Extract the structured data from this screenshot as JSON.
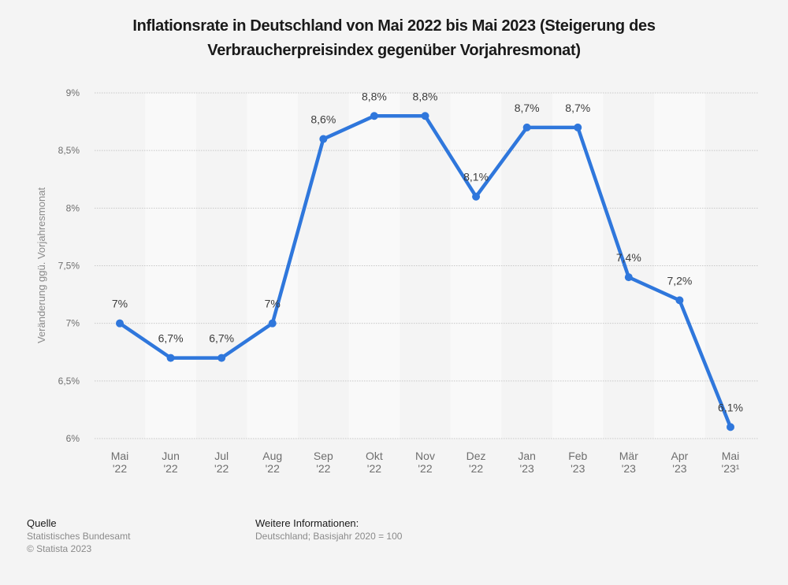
{
  "chart_data": {
    "type": "line",
    "title": "Inflationsrate in Deutschland von Mai 2022 bis Mai 2023 (Steigerung des Verbraucherpreisindex gegenüber Vorjahresmonat)",
    "title_lines": [
      "Inflationsrate in Deutschland von Mai 2022 bis Mai 2023 (Steigerung des",
      "Verbraucherpreisindex gegenüber Vorjahresmonat)"
    ],
    "xlabel": "",
    "ylabel": "Veränderung ggü. Vorjahresmonat",
    "categories": [
      [
        "Mai",
        "'22"
      ],
      [
        "Jun",
        "'22"
      ],
      [
        "Jul",
        "'22"
      ],
      [
        "Aug",
        "'22"
      ],
      [
        "Sep",
        "'22"
      ],
      [
        "Okt",
        "'22"
      ],
      [
        "Nov",
        "'22"
      ],
      [
        "Dez",
        "'22"
      ],
      [
        "Jan",
        "'23"
      ],
      [
        "Feb",
        "'23"
      ],
      [
        "Mär",
        "'23"
      ],
      [
        "Apr",
        "'23"
      ],
      [
        "Mai",
        "'23¹"
      ]
    ],
    "series": [
      {
        "name": "Inflationsrate",
        "values": [
          7.0,
          6.7,
          6.7,
          7.0,
          8.6,
          8.8,
          8.8,
          8.1,
          8.7,
          8.7,
          7.4,
          7.2,
          6.1
        ],
        "labels": [
          "7%",
          "6,7%",
          "6,7%",
          "7%",
          "8,6%",
          "8,8%",
          "8,8%",
          "8,1%",
          "8,7%",
          "8,7%",
          "7,4%",
          "7,2%",
          "6,1%"
        ],
        "color": "#2f77dc"
      }
    ],
    "ylim": [
      6,
      9
    ],
    "yticks": [
      6,
      6.5,
      7,
      7.5,
      8,
      8.5,
      9
    ],
    "ytick_labels": [
      "6%",
      "6,5%",
      "7%",
      "7,5%",
      "8%",
      "8,5%",
      "9%"
    ],
    "grid": true,
    "legend": "none"
  },
  "colors": {
    "line": "#2f77dc",
    "band_light": "#f9f9f9",
    "background": "#f4f4f4",
    "grid": "#c8c8c8"
  },
  "footer": {
    "source_heading": "Quelle",
    "source": "Statistisches Bundesamt",
    "copyright": "© Statista 2023",
    "info_heading": "Weitere Informationen:",
    "info": "Deutschland; Basisjahr 2020 = 100"
  }
}
